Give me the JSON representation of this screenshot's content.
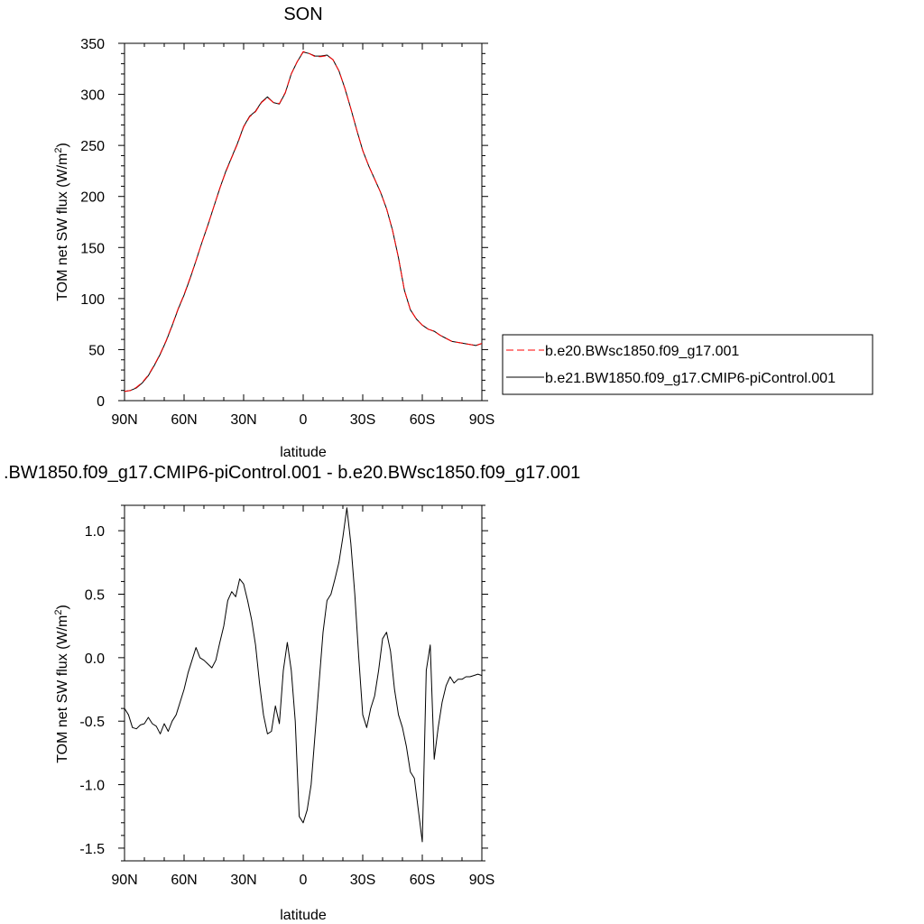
{
  "chart_data": [
    {
      "type": "line",
      "title": "SON",
      "xlabel": "latitude",
      "ylabel": "TOM net SW flux (W/m²)",
      "ylabel_main": "TOM net SW flux (W/m",
      "ylabel_sup": "2",
      "ylabel_end": ")",
      "xlim": [
        90,
        -90
      ],
      "ylim": [
        0,
        350
      ],
      "x_ticks": [
        90,
        60,
        30,
        0,
        -30,
        -60,
        -90
      ],
      "x_tick_labels": [
        "90N",
        "60N",
        "30N",
        "0",
        "30S",
        "60S",
        "90S"
      ],
      "y_ticks": [
        0,
        50,
        100,
        150,
        200,
        250,
        300,
        350
      ],
      "y_tick_labels": [
        "0",
        "50",
        "100",
        "150",
        "200",
        "250",
        "300",
        "350"
      ],
      "legend_position": "right",
      "series": [
        {
          "name": "b.e20.BWsc1850.f09_g17.001",
          "color": "#ff0000",
          "dash": "dashed",
          "x": [
            90,
            87,
            84,
            81,
            78,
            75,
            72,
            69,
            66,
            63,
            60,
            57,
            54,
            51,
            48,
            45,
            42,
            39,
            36,
            33,
            30,
            27,
            24,
            21,
            18,
            15,
            12,
            9,
            6,
            3,
            0,
            -3,
            -6,
            -9,
            -12,
            -15,
            -18,
            -21,
            -24,
            -27,
            -30,
            -33,
            -36,
            -39,
            -42,
            -45,
            -48,
            -51,
            -54,
            -57,
            -60,
            -63,
            -66,
            -69,
            -72,
            -75,
            -78,
            -81,
            -84,
            -87,
            -90
          ],
          "y": [
            9,
            10,
            13,
            18,
            25,
            35,
            46,
            59,
            74,
            90,
            104,
            120,
            137,
            155,
            172,
            190,
            208,
            224,
            238,
            252,
            268,
            278,
            283,
            292,
            297,
            292,
            291,
            302,
            320,
            332,
            342,
            340,
            337,
            337,
            338,
            334,
            323,
            306,
            286,
            265,
            245,
            230,
            217,
            204,
            188,
            167,
            140,
            108,
            89,
            80,
            74,
            70,
            68,
            64,
            61,
            58,
            57,
            56,
            55,
            54,
            56
          ]
        },
        {
          "name": "b.e21.BW1850.f09_g17.CMIP6-piControl.001",
          "color": "#000000",
          "dash": "solid",
          "x": [
            90,
            87,
            84,
            81,
            78,
            75,
            72,
            69,
            66,
            63,
            60,
            57,
            54,
            51,
            48,
            45,
            42,
            39,
            36,
            33,
            30,
            27,
            24,
            21,
            18,
            15,
            12,
            9,
            6,
            3,
            0,
            -3,
            -6,
            -9,
            -12,
            -15,
            -18,
            -21,
            -24,
            -27,
            -30,
            -33,
            -36,
            -39,
            -42,
            -45,
            -48,
            -51,
            -54,
            -57,
            -60,
            -63,
            -66,
            -69,
            -72,
            -75,
            -78,
            -81,
            -84,
            -87,
            -90
          ],
          "y": [
            9,
            10,
            12.5,
            17.5,
            24.5,
            34.5,
            45.5,
            58.5,
            73.5,
            89.5,
            103.5,
            119.5,
            137,
            155,
            172,
            190,
            208,
            224.5,
            238.5,
            252.5,
            268.5,
            278.5,
            283.5,
            292.5,
            297.5,
            292,
            290.5,
            301.5,
            320,
            332,
            341.5,
            340,
            337.5,
            337.5,
            338.5,
            334,
            323,
            306,
            286,
            265,
            245,
            230,
            217,
            204,
            188,
            167,
            140,
            108,
            89,
            80,
            74,
            70,
            68,
            64,
            61,
            58,
            57,
            56,
            55,
            54,
            56
          ]
        }
      ]
    },
    {
      "type": "line",
      "title": ".BW1850.f09_g17.CMIP6-piControl.001 - b.e20.BWsc1850.f09_g17.001",
      "xlabel": "latitude",
      "ylabel": "TOM net SW flux (W/m²)",
      "ylabel_main": "TOM net SW flux (W/m",
      "ylabel_sup": "2",
      "ylabel_end": ")",
      "xlim": [
        90,
        -90
      ],
      "ylim": [
        -1.6,
        1.2
      ],
      "x_ticks": [
        90,
        60,
        30,
        0,
        -30,
        -60,
        -90
      ],
      "x_tick_labels": [
        "90N",
        "60N",
        "30N",
        "0",
        "30S",
        "60S",
        "90S"
      ],
      "y_ticks": [
        -1.5,
        -1.0,
        -0.5,
        0.0,
        0.5,
        1.0
      ],
      "y_tick_labels": [
        "-1.5",
        "-1.0",
        "-0.5",
        "0.0",
        "0.5",
        "1.0"
      ],
      "series": [
        {
          "name": "",
          "color": "#000000",
          "dash": "solid",
          "x": [
            90,
            88,
            86,
            84,
            82,
            80,
            78,
            76,
            74,
            72,
            70,
            68,
            66,
            64,
            62,
            60,
            58,
            56,
            54,
            52,
            50,
            48,
            46,
            44,
            42,
            40,
            38,
            36,
            34,
            32,
            30,
            28,
            26,
            24,
            22,
            20,
            18,
            16,
            14,
            12,
            10,
            8,
            6,
            4,
            2,
            0,
            -2,
            -4,
            -6,
            -8,
            -10,
            -12,
            -14,
            -16,
            -18,
            -20,
            -22,
            -24,
            -26,
            -28,
            -30,
            -32,
            -34,
            -36,
            -38,
            -40,
            -42,
            -44,
            -46,
            -48,
            -50,
            -52,
            -54,
            -56,
            -58,
            -60,
            -62,
            -64,
            -66,
            -68,
            -70,
            -72,
            -74,
            -76,
            -78,
            -80,
            -82,
            -84,
            -86,
            -88,
            -90
          ],
          "y": [
            -0.4,
            -0.45,
            -0.55,
            -0.56,
            -0.53,
            -0.52,
            -0.47,
            -0.52,
            -0.54,
            -0.6,
            -0.52,
            -0.58,
            -0.5,
            -0.45,
            -0.35,
            -0.25,
            -0.12,
            -0.02,
            0.08,
            0.0,
            -0.02,
            -0.05,
            -0.08,
            -0.02,
            0.12,
            0.25,
            0.45,
            0.52,
            0.48,
            0.62,
            0.58,
            0.45,
            0.3,
            0.1,
            -0.2,
            -0.45,
            -0.6,
            -0.58,
            -0.38,
            -0.52,
            -0.1,
            0.12,
            -0.1,
            -0.5,
            -1.25,
            -1.3,
            -1.2,
            -1.0,
            -0.6,
            -0.2,
            0.2,
            0.45,
            0.5,
            0.62,
            0.75,
            0.95,
            1.18,
            0.9,
            0.5,
            0.0,
            -0.45,
            -0.55,
            -0.4,
            -0.3,
            -0.1,
            0.15,
            0.2,
            0.05,
            -0.25,
            -0.45,
            -0.55,
            -0.7,
            -0.9,
            -0.95,
            -1.2,
            -1.45,
            -0.1,
            0.1,
            -0.8,
            -0.55,
            -0.35,
            -0.22,
            -0.15,
            -0.2,
            -0.17,
            -0.17,
            -0.15,
            -0.15,
            -0.14,
            -0.13,
            -0.14
          ]
        }
      ]
    }
  ]
}
